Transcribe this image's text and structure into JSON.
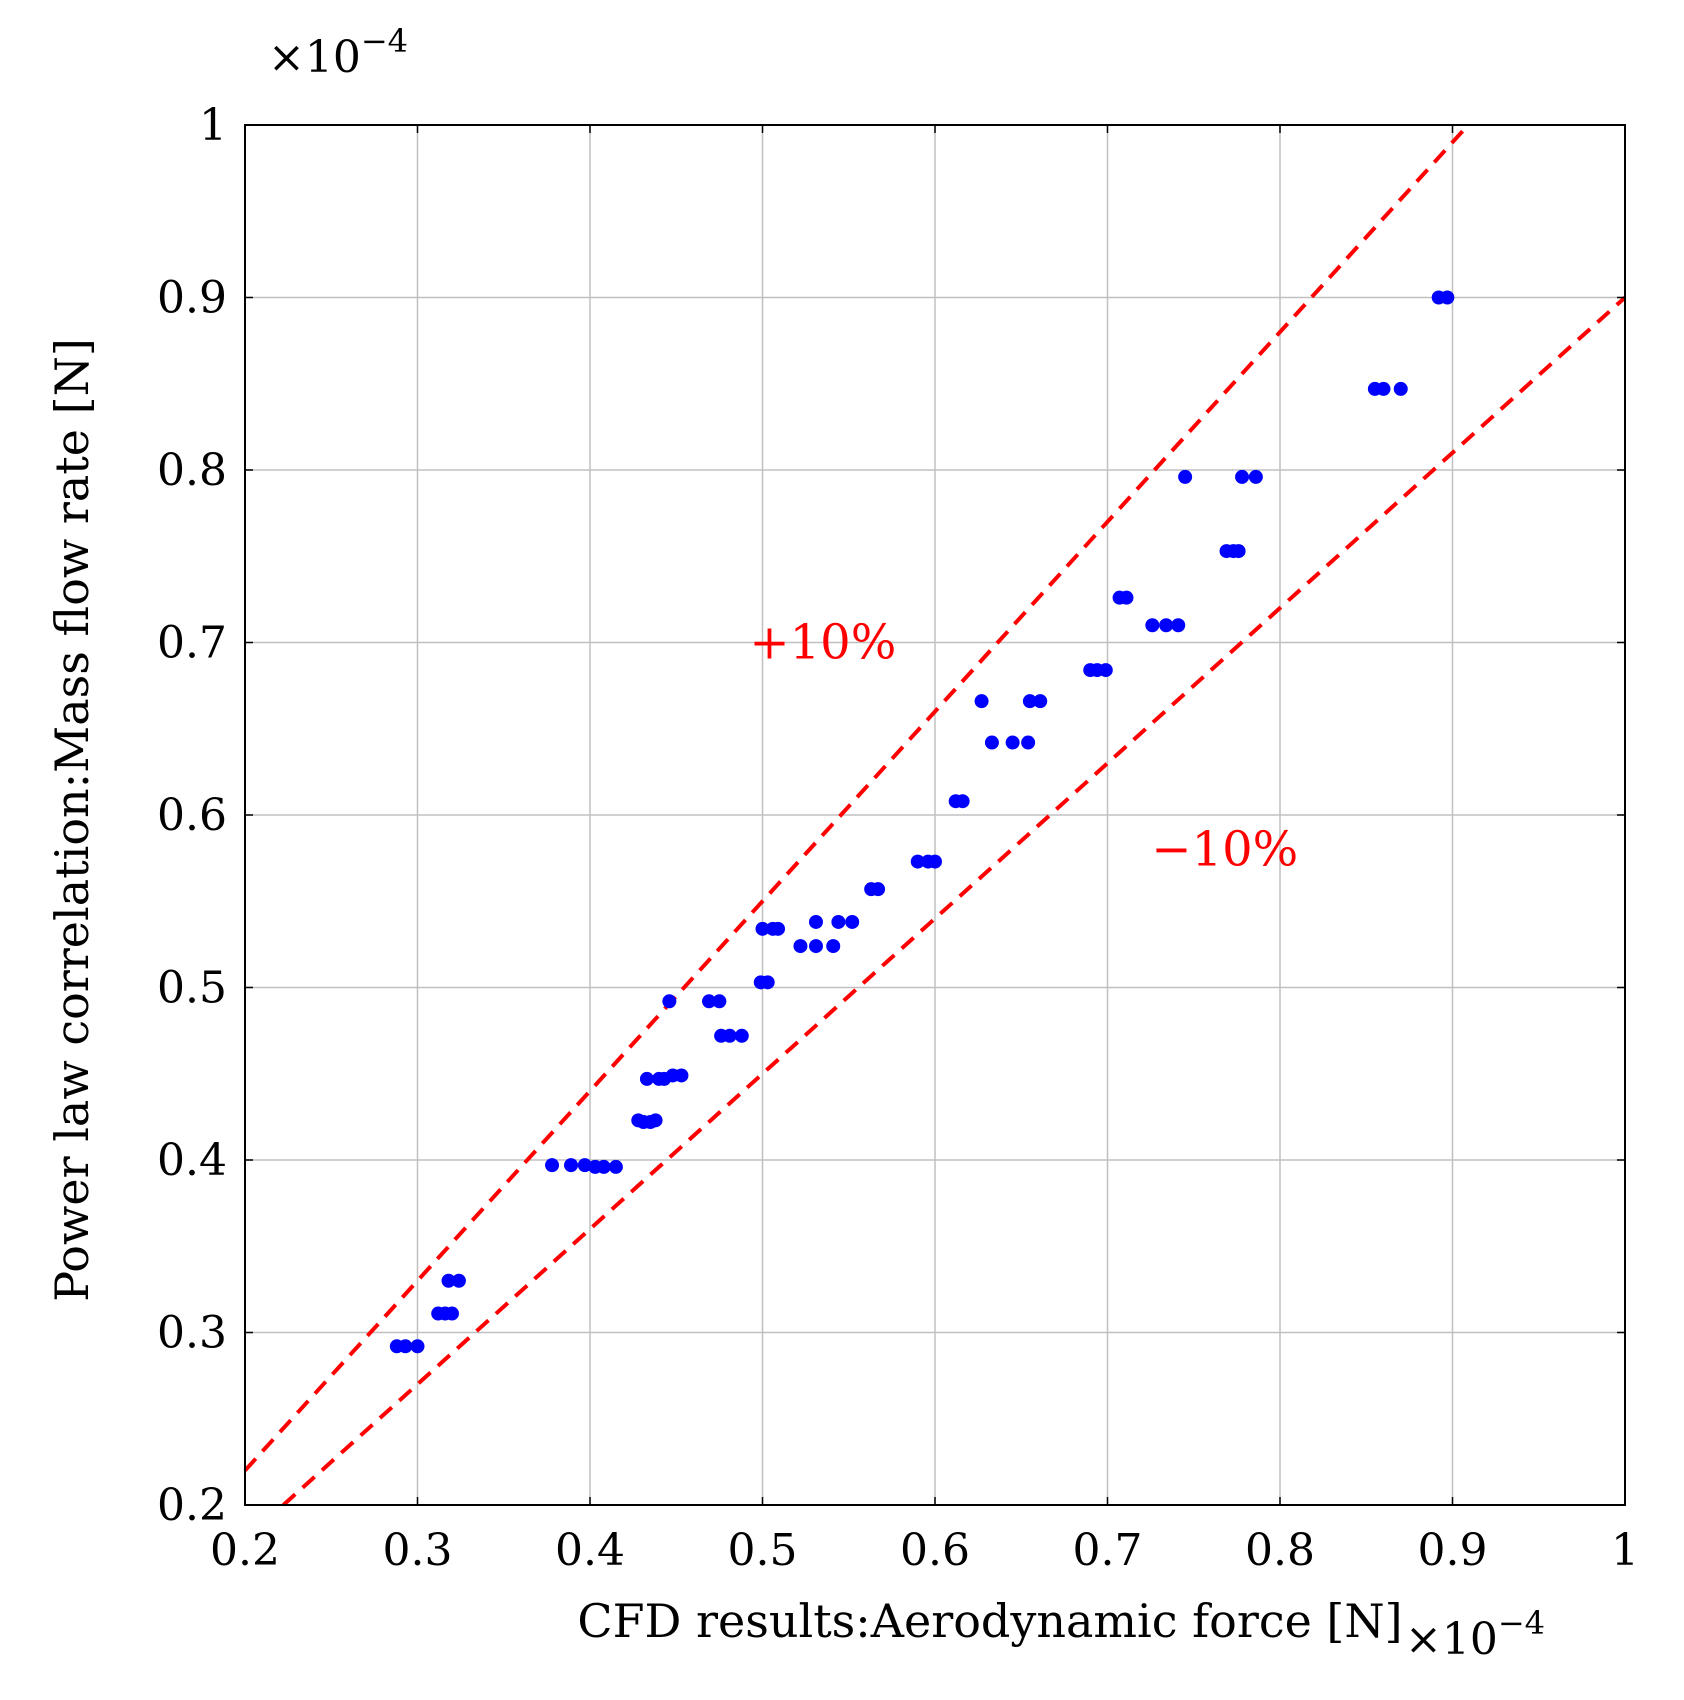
{
  "chart_data": {
    "type": "scatter",
    "title": "",
    "xlabel": "CFD results:Aerodynamic force [N]",
    "ylabel": "Power law correlation:Mass flow rate [N]",
    "x_multiplier": "×10",
    "x_multiplier_exp": "−4",
    "y_multiplier": "×10",
    "y_multiplier_exp": "−4",
    "xlim": [
      0.2,
      1.0
    ],
    "ylim": [
      0.2,
      1.0
    ],
    "grid": true,
    "x_ticks": [
      0.2,
      0.3,
      0.4,
      0.5,
      0.6,
      0.7,
      0.8,
      0.9,
      1.0
    ],
    "y_ticks": [
      0.2,
      0.3,
      0.4,
      0.5,
      0.6,
      0.7,
      0.8,
      0.9,
      1.0
    ],
    "x_tick_labels": [
      "0.2",
      "0.3",
      "0.4",
      "0.5",
      "0.6",
      "0.7",
      "0.8",
      "0.9",
      "1"
    ],
    "y_tick_labels": [
      "0.2",
      "0.3",
      "0.4",
      "0.5",
      "0.6",
      "0.7",
      "0.8",
      "0.9",
      "1"
    ],
    "series": [
      {
        "name": "data",
        "color": "#0000ff",
        "marker": "circle",
        "points": [
          [
            0.288,
            0.292
          ],
          [
            0.293,
            0.292
          ],
          [
            0.3,
            0.292
          ],
          [
            0.312,
            0.311
          ],
          [
            0.316,
            0.311
          ],
          [
            0.32,
            0.311
          ],
          [
            0.318,
            0.33
          ],
          [
            0.324,
            0.33
          ],
          [
            0.378,
            0.397
          ],
          [
            0.389,
            0.397
          ],
          [
            0.397,
            0.397
          ],
          [
            0.403,
            0.396
          ],
          [
            0.408,
            0.396
          ],
          [
            0.415,
            0.396
          ],
          [
            0.428,
            0.423
          ],
          [
            0.431,
            0.422
          ],
          [
            0.435,
            0.422
          ],
          [
            0.438,
            0.423
          ],
          [
            0.433,
            0.447
          ],
          [
            0.44,
            0.447
          ],
          [
            0.443,
            0.447
          ],
          [
            0.448,
            0.449
          ],
          [
            0.453,
            0.449
          ],
          [
            0.446,
            0.492
          ],
          [
            0.469,
            0.492
          ],
          [
            0.475,
            0.492
          ],
          [
            0.476,
            0.472
          ],
          [
            0.481,
            0.472
          ],
          [
            0.488,
            0.472
          ],
          [
            0.499,
            0.503
          ],
          [
            0.503,
            0.503
          ],
          [
            0.5,
            0.534
          ],
          [
            0.506,
            0.534
          ],
          [
            0.509,
            0.534
          ],
          [
            0.522,
            0.524
          ],
          [
            0.531,
            0.524
          ],
          [
            0.541,
            0.524
          ],
          [
            0.531,
            0.538
          ],
          [
            0.544,
            0.538
          ],
          [
            0.552,
            0.538
          ],
          [
            0.563,
            0.557
          ],
          [
            0.567,
            0.557
          ],
          [
            0.59,
            0.573
          ],
          [
            0.596,
            0.573
          ],
          [
            0.6,
            0.573
          ],
          [
            0.612,
            0.608
          ],
          [
            0.616,
            0.608
          ],
          [
            0.627,
            0.666
          ],
          [
            0.655,
            0.666
          ],
          [
            0.661,
            0.666
          ],
          [
            0.633,
            0.642
          ],
          [
            0.645,
            0.642
          ],
          [
            0.654,
            0.642
          ],
          [
            0.69,
            0.684
          ],
          [
            0.694,
            0.684
          ],
          [
            0.699,
            0.684
          ],
          [
            0.707,
            0.726
          ],
          [
            0.711,
            0.726
          ],
          [
            0.726,
            0.71
          ],
          [
            0.734,
            0.71
          ],
          [
            0.741,
            0.71
          ],
          [
            0.745,
            0.796
          ],
          [
            0.778,
            0.796
          ],
          [
            0.786,
            0.796
          ],
          [
            0.769,
            0.753
          ],
          [
            0.773,
            0.753
          ],
          [
            0.776,
            0.753
          ],
          [
            0.855,
            0.847
          ],
          [
            0.86,
            0.847
          ],
          [
            0.87,
            0.847
          ],
          [
            0.892,
            0.9
          ],
          [
            0.897,
            0.9
          ]
        ]
      }
    ],
    "reference_lines": [
      {
        "name": "+10%",
        "slope": 1.1,
        "color": "#ff0000",
        "style": "dashed"
      },
      {
        "name": "−10%",
        "slope": 0.9,
        "color": "#ff0000",
        "style": "dashed"
      }
    ],
    "annotations": [
      {
        "text": "+10%",
        "x": 0.535,
        "y": 0.7,
        "color": "#ff0000"
      },
      {
        "text": "−10%",
        "x": 0.768,
        "y": 0.58,
        "color": "#ff0000"
      }
    ]
  }
}
